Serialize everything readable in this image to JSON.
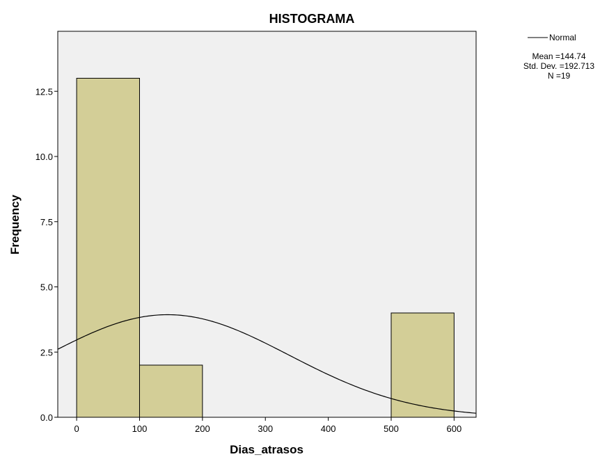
{
  "chart_data": {
    "type": "bar",
    "title": "HISTOGRAMA",
    "xlabel": "Dias_atrasos",
    "ylabel": "Frequency",
    "xlim": [
      -30,
      635
    ],
    "ylim": [
      0,
      14.8
    ],
    "x_ticks": [
      0,
      100,
      200,
      300,
      400,
      500,
      600
    ],
    "x_tick_labels": [
      "0",
      "100",
      "200",
      "300",
      "400",
      "500",
      "600"
    ],
    "y_ticks": [
      0,
      2.5,
      5,
      7.5,
      10,
      12.5
    ],
    "y_tick_labels": [
      "0.0",
      "2.5",
      "5.0",
      "7.5",
      "10.0",
      "12.5"
    ],
    "bins": [
      {
        "x0": 0,
        "x1": 100,
        "count": 13
      },
      {
        "x0": 100,
        "x1": 200,
        "count": 2
      },
      {
        "x0": 200,
        "x1": 300,
        "count": 0
      },
      {
        "x0": 300,
        "x1": 400,
        "count": 0
      },
      {
        "x0": 400,
        "x1": 500,
        "count": 0
      },
      {
        "x0": 500,
        "x1": 600,
        "count": 4
      }
    ],
    "normal_curve": {
      "label": "Normal",
      "mean": 144.74,
      "sd": 192.713,
      "n": 19,
      "bin_width": 100
    },
    "stats": {
      "mean_label": "Mean =144.74",
      "sd_label": "Std. Dev. =192.713",
      "n_label": "N =19"
    },
    "grid": false,
    "legend_position": "top-right",
    "colors": {
      "plot_bg": "#f0f0f0",
      "bar_fill": "#d3ce97",
      "bar_stroke": "#000000",
      "curve": "#000000"
    }
  }
}
